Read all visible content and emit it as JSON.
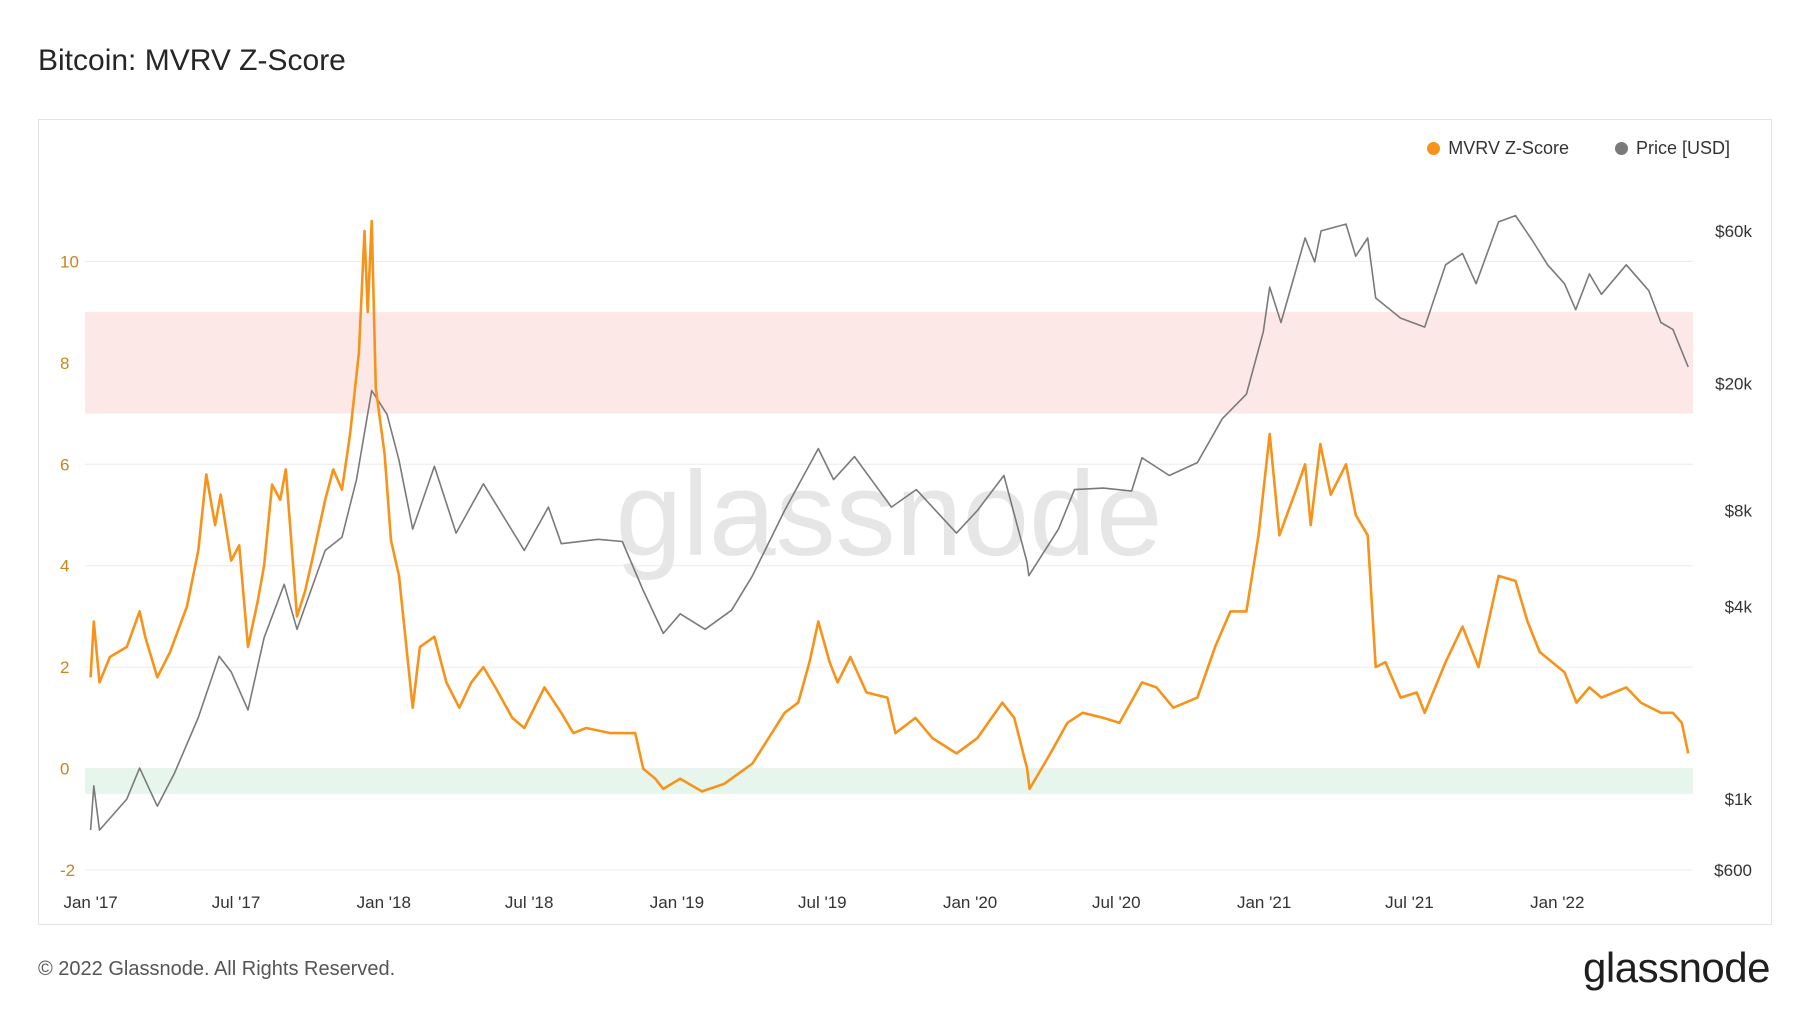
{
  "title": "Bitcoin: MVRV Z-Score",
  "footer": {
    "copyright": "© 2022 Glassnode. All Rights Reserved.",
    "logo": "glassnode"
  },
  "watermark": "glassnode",
  "colors": {
    "mvrv": "#f7931a",
    "price": "#7a7a7a",
    "red_band": "#fde8e8",
    "green_band": "#e6f6ec",
    "grid": "#ececec"
  },
  "chart_data": {
    "type": "line",
    "title": "Bitcoin: MVRV Z-Score",
    "legend": {
      "placement": "top-right",
      "items": [
        {
          "label": "MVRV Z-Score",
          "color": "#f7931a"
        },
        {
          "label": "Price [USD]",
          "color": "#7a7a7a"
        }
      ]
    },
    "x_range": [
      "2016-12-25",
      "2022-06-19"
    ],
    "x_ticks": [
      {
        "date": "2017-01-01",
        "label": "Jan '17"
      },
      {
        "date": "2017-07-01",
        "label": "Jul '17"
      },
      {
        "date": "2018-01-01",
        "label": "Jan '18"
      },
      {
        "date": "2018-07-01",
        "label": "Jul '18"
      },
      {
        "date": "2019-01-01",
        "label": "Jan '19"
      },
      {
        "date": "2019-07-01",
        "label": "Jul '19"
      },
      {
        "date": "2020-01-01",
        "label": "Jan '20"
      },
      {
        "date": "2020-07-01",
        "label": "Jul '20"
      },
      {
        "date": "2021-01-01",
        "label": "Jan '21"
      },
      {
        "date": "2021-07-01",
        "label": "Jul '21"
      },
      {
        "date": "2022-01-01",
        "label": "Jan '22"
      }
    ],
    "left_axis": {
      "ylim": [
        -2,
        12
      ],
      "ticks": [
        -2,
        0,
        2,
        4,
        6,
        8,
        10
      ]
    },
    "right_axis": {
      "scale": "log",
      "ylim": [
        600,
        100000
      ],
      "ticks": [
        {
          "value": 600,
          "label": "$600"
        },
        {
          "value": 1000,
          "label": "$1k"
        },
        {
          "value": 4000,
          "label": "$4k"
        },
        {
          "value": 8000,
          "label": "$8k"
        },
        {
          "value": 20000,
          "label": "$20k"
        },
        {
          "value": 60000,
          "label": "$60k"
        }
      ]
    },
    "bands": [
      {
        "axis": "left",
        "from": 7,
        "to": 9,
        "color": "#fde8e8"
      },
      {
        "axis": "left",
        "from": -0.5,
        "to": 0,
        "color": "#e6f6ec"
      }
    ],
    "grid": true,
    "series": [
      {
        "name": "MVRV Z-Score",
        "axis": "left",
        "color": "#f7931a",
        "points": [
          [
            "2017-01-01",
            1.8
          ],
          [
            "2017-01-05",
            2.9
          ],
          [
            "2017-01-12",
            1.7
          ],
          [
            "2017-01-25",
            2.2
          ],
          [
            "2017-02-15",
            2.4
          ],
          [
            "2017-03-03",
            3.1
          ],
          [
            "2017-03-10",
            2.6
          ],
          [
            "2017-03-25",
            1.8
          ],
          [
            "2017-04-10",
            2.3
          ],
          [
            "2017-05-01",
            3.2
          ],
          [
            "2017-05-15",
            4.3
          ],
          [
            "2017-05-25",
            5.8
          ],
          [
            "2017-06-05",
            4.8
          ],
          [
            "2017-06-12",
            5.4
          ],
          [
            "2017-06-25",
            4.1
          ],
          [
            "2017-07-05",
            4.4
          ],
          [
            "2017-07-16",
            2.4
          ],
          [
            "2017-07-28",
            3.3
          ],
          [
            "2017-08-05",
            4.0
          ],
          [
            "2017-08-15",
            5.6
          ],
          [
            "2017-08-25",
            5.3
          ],
          [
            "2017-09-01",
            5.9
          ],
          [
            "2017-09-15",
            3.0
          ],
          [
            "2017-09-25",
            3.5
          ],
          [
            "2017-10-05",
            4.2
          ],
          [
            "2017-10-20",
            5.3
          ],
          [
            "2017-10-30",
            5.9
          ],
          [
            "2017-11-10",
            5.5
          ],
          [
            "2017-11-20",
            6.6
          ],
          [
            "2017-12-01",
            8.2
          ],
          [
            "2017-12-08",
            10.6
          ],
          [
            "2017-12-12",
            9.0
          ],
          [
            "2017-12-17",
            10.8
          ],
          [
            "2017-12-22",
            7.5
          ],
          [
            "2018-01-02",
            6.2
          ],
          [
            "2018-01-10",
            4.5
          ],
          [
            "2018-01-20",
            3.8
          ],
          [
            "2018-02-06",
            1.2
          ],
          [
            "2018-02-15",
            2.4
          ],
          [
            "2018-03-05",
            2.6
          ],
          [
            "2018-03-20",
            1.7
          ],
          [
            "2018-04-05",
            1.2
          ],
          [
            "2018-04-20",
            1.7
          ],
          [
            "2018-05-05",
            2.0
          ],
          [
            "2018-05-20",
            1.6
          ],
          [
            "2018-06-10",
            1.0
          ],
          [
            "2018-06-25",
            0.8
          ],
          [
            "2018-07-20",
            1.6
          ],
          [
            "2018-08-10",
            1.1
          ],
          [
            "2018-08-25",
            0.7
          ],
          [
            "2018-09-10",
            0.8
          ],
          [
            "2018-10-10",
            0.7
          ],
          [
            "2018-11-10",
            0.7
          ],
          [
            "2018-11-20",
            0.0
          ],
          [
            "2018-12-05",
            -0.2
          ],
          [
            "2018-12-15",
            -0.4
          ],
          [
            "2019-01-05",
            -0.2
          ],
          [
            "2019-02-01",
            -0.45
          ],
          [
            "2019-03-01",
            -0.3
          ],
          [
            "2019-04-05",
            0.1
          ],
          [
            "2019-05-15",
            1.1
          ],
          [
            "2019-06-01",
            1.3
          ],
          [
            "2019-06-15",
            2.1
          ],
          [
            "2019-06-26",
            2.9
          ],
          [
            "2019-07-10",
            2.1
          ],
          [
            "2019-07-20",
            1.7
          ],
          [
            "2019-08-05",
            2.2
          ],
          [
            "2019-08-25",
            1.5
          ],
          [
            "2019-09-20",
            1.4
          ],
          [
            "2019-09-30",
            0.7
          ],
          [
            "2019-10-25",
            1.0
          ],
          [
            "2019-11-15",
            0.6
          ],
          [
            "2019-12-15",
            0.3
          ],
          [
            "2020-01-10",
            0.6
          ],
          [
            "2020-02-10",
            1.3
          ],
          [
            "2020-02-25",
            1.0
          ],
          [
            "2020-03-12",
            0.0
          ],
          [
            "2020-03-15",
            -0.4
          ],
          [
            "2020-04-10",
            0.3
          ],
          [
            "2020-05-01",
            0.9
          ],
          [
            "2020-05-20",
            1.1
          ],
          [
            "2020-06-15",
            1.0
          ],
          [
            "2020-07-05",
            0.9
          ],
          [
            "2020-08-02",
            1.7
          ],
          [
            "2020-08-20",
            1.6
          ],
          [
            "2020-09-10",
            1.2
          ],
          [
            "2020-10-10",
            1.4
          ],
          [
            "2020-11-01",
            2.4
          ],
          [
            "2020-11-20",
            3.1
          ],
          [
            "2020-12-10",
            3.1
          ],
          [
            "2020-12-25",
            4.6
          ],
          [
            "2021-01-08",
            6.6
          ],
          [
            "2021-01-20",
            4.6
          ],
          [
            "2021-02-10",
            5.5
          ],
          [
            "2021-02-21",
            6.0
          ],
          [
            "2021-02-28",
            4.8
          ],
          [
            "2021-03-12",
            6.4
          ],
          [
            "2021-03-25",
            5.4
          ],
          [
            "2021-04-13",
            6.0
          ],
          [
            "2021-04-25",
            5.0
          ],
          [
            "2021-05-10",
            4.6
          ],
          [
            "2021-05-20",
            2.0
          ],
          [
            "2021-06-01",
            2.1
          ],
          [
            "2021-06-20",
            1.4
          ],
          [
            "2021-07-10",
            1.5
          ],
          [
            "2021-07-20",
            1.1
          ],
          [
            "2021-08-15",
            2.1
          ],
          [
            "2021-09-05",
            2.8
          ],
          [
            "2021-09-25",
            2.0
          ],
          [
            "2021-10-20",
            3.8
          ],
          [
            "2021-11-10",
            3.7
          ],
          [
            "2021-11-25",
            2.9
          ],
          [
            "2021-12-10",
            2.3
          ],
          [
            "2022-01-10",
            1.9
          ],
          [
            "2022-01-25",
            1.3
          ],
          [
            "2022-02-10",
            1.6
          ],
          [
            "2022-02-25",
            1.4
          ],
          [
            "2022-03-28",
            1.6
          ],
          [
            "2022-04-15",
            1.3
          ],
          [
            "2022-05-10",
            1.1
          ],
          [
            "2022-05-25",
            1.1
          ],
          [
            "2022-06-05",
            0.9
          ],
          [
            "2022-06-13",
            0.3
          ]
        ]
      },
      {
        "name": "Price [USD]",
        "axis": "right",
        "color": "#7a7a7a",
        "points": [
          [
            "2017-01-01",
            800
          ],
          [
            "2017-01-05",
            1100
          ],
          [
            "2017-01-12",
            800
          ],
          [
            "2017-02-15",
            1000
          ],
          [
            "2017-03-03",
            1250
          ],
          [
            "2017-03-25",
            950
          ],
          [
            "2017-04-15",
            1200
          ],
          [
            "2017-05-15",
            1800
          ],
          [
            "2017-06-10",
            2800
          ],
          [
            "2017-06-25",
            2500
          ],
          [
            "2017-07-16",
            1900
          ],
          [
            "2017-08-05",
            3200
          ],
          [
            "2017-08-30",
            4700
          ],
          [
            "2017-09-15",
            3400
          ],
          [
            "2017-10-20",
            6000
          ],
          [
            "2017-11-10",
            6600
          ],
          [
            "2017-11-28",
            10000
          ],
          [
            "2017-12-17",
            19000
          ],
          [
            "2018-01-05",
            16000
          ],
          [
            "2018-01-20",
            11500
          ],
          [
            "2018-02-06",
            7000
          ],
          [
            "2018-03-05",
            11000
          ],
          [
            "2018-04-01",
            6800
          ],
          [
            "2018-05-05",
            9700
          ],
          [
            "2018-06-25",
            6000
          ],
          [
            "2018-07-25",
            8200
          ],
          [
            "2018-08-10",
            6300
          ],
          [
            "2018-09-25",
            6500
          ],
          [
            "2018-10-25",
            6400
          ],
          [
            "2018-11-20",
            4500
          ],
          [
            "2018-12-15",
            3300
          ],
          [
            "2019-01-05",
            3800
          ],
          [
            "2019-02-05",
            3400
          ],
          [
            "2019-03-10",
            3900
          ],
          [
            "2019-04-05",
            5000
          ],
          [
            "2019-05-15",
            8000
          ],
          [
            "2019-06-26",
            12500
          ],
          [
            "2019-07-15",
            10000
          ],
          [
            "2019-08-10",
            11800
          ],
          [
            "2019-09-25",
            8200
          ],
          [
            "2019-10-26",
            9300
          ],
          [
            "2019-12-15",
            6800
          ],
          [
            "2020-01-10",
            8000
          ],
          [
            "2020-02-12",
            10300
          ],
          [
            "2020-03-12",
            5500
          ],
          [
            "2020-03-14",
            5000
          ],
          [
            "2020-04-20",
            7000
          ],
          [
            "2020-05-10",
            9300
          ],
          [
            "2020-06-15",
            9400
          ],
          [
            "2020-07-20",
            9200
          ],
          [
            "2020-08-02",
            11700
          ],
          [
            "2020-09-05",
            10300
          ],
          [
            "2020-10-10",
            11300
          ],
          [
            "2020-11-10",
            15500
          ],
          [
            "2020-12-10",
            18500
          ],
          [
            "2020-12-31",
            29000
          ],
          [
            "2021-01-08",
            40000
          ],
          [
            "2021-01-22",
            31000
          ],
          [
            "2021-02-21",
            57000
          ],
          [
            "2021-03-05",
            48000
          ],
          [
            "2021-03-13",
            60000
          ],
          [
            "2021-04-13",
            63000
          ],
          [
            "2021-04-25",
            50000
          ],
          [
            "2021-05-10",
            57000
          ],
          [
            "2021-05-20",
            37000
          ],
          [
            "2021-06-20",
            32000
          ],
          [
            "2021-07-20",
            30000
          ],
          [
            "2021-08-15",
            47000
          ],
          [
            "2021-09-05",
            51000
          ],
          [
            "2021-09-22",
            41000
          ],
          [
            "2021-10-20",
            64000
          ],
          [
            "2021-11-10",
            67000
          ],
          [
            "2021-12-01",
            56000
          ],
          [
            "2021-12-20",
            47000
          ],
          [
            "2022-01-10",
            41000
          ],
          [
            "2022-01-24",
            34000
          ],
          [
            "2022-02-10",
            44000
          ],
          [
            "2022-02-25",
            38000
          ],
          [
            "2022-03-28",
            47000
          ],
          [
            "2022-04-25",
            39000
          ],
          [
            "2022-05-10",
            31000
          ],
          [
            "2022-05-25",
            29500
          ],
          [
            "2022-06-13",
            22500
          ]
        ]
      }
    ]
  }
}
